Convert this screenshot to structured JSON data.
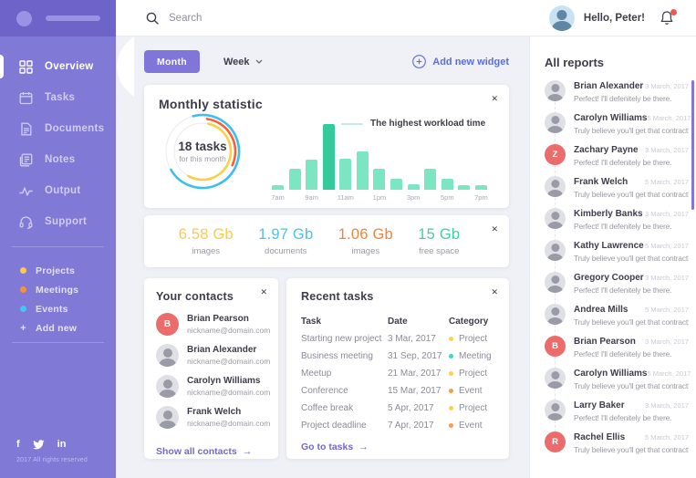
{
  "sidebar": {
    "nav": [
      {
        "label": "Overview",
        "icon": "grid-icon",
        "active": true
      },
      {
        "label": "Tasks",
        "icon": "calendar-icon",
        "active": false
      },
      {
        "label": "Documents",
        "icon": "document-icon",
        "active": false
      },
      {
        "label": "Notes",
        "icon": "notes-icon",
        "active": false
      },
      {
        "label": "Output",
        "icon": "pulse-icon",
        "active": false
      },
      {
        "label": "Support",
        "icon": "headset-icon",
        "active": false
      }
    ],
    "categories": [
      {
        "label": "Projects",
        "color": "#fcc94b"
      },
      {
        "label": "Meetings",
        "color": "#f5923e"
      },
      {
        "label": "Events",
        "color": "#41c7f5"
      }
    ],
    "add_new_label": "Add new",
    "social": [
      {
        "name": "facebook-icon",
        "glyph": "f"
      },
      {
        "name": "twitter-icon",
        "glyph": ""
      },
      {
        "name": "linkedin-icon",
        "glyph": "in"
      }
    ],
    "copyright": "2017 All rights reserved"
  },
  "topbar": {
    "search_placeholder": "Search",
    "greeting": "Hello, Peter!"
  },
  "controls": {
    "month_label": "Month",
    "week_label": "Week",
    "add_widget_label": "Add new widget"
  },
  "monthly_statistic": {
    "title": "Monthly statistic"
  },
  "chart_data": [
    {
      "type": "donut",
      "center_value": "18 tasks",
      "center_caption": "for this month",
      "arcs": [
        {
          "name": "blue",
          "color": "#3ebdf2",
          "radius": 40,
          "start_deg": -15,
          "end_deg": 240
        },
        {
          "name": "orange",
          "color": "#f4623a",
          "radius": 36,
          "start_deg": 8,
          "end_deg": 115
        },
        {
          "name": "yellow",
          "color": "#fccf44",
          "radius": 31,
          "start_deg": 12,
          "end_deg": 210
        }
      ],
      "track_radii": [
        40,
        31
      ],
      "track_color": "#ededf2"
    },
    {
      "type": "bar",
      "legend": "The highest workload time",
      "x_labels": [
        "7am",
        "",
        "9am",
        "",
        "11am",
        "",
        "1pm",
        "",
        "3pm",
        "",
        "5pm",
        "",
        "7pm"
      ],
      "values": [
        7,
        30,
        43,
        95,
        45,
        55,
        30,
        16,
        8,
        30,
        16,
        7,
        6
      ],
      "highlight_index": 3,
      "bar_color": "#7ce5c2",
      "highlight_color": "#35ca9b",
      "ylim": [
        0,
        100
      ]
    }
  ],
  "storage_stats": [
    {
      "value": "6.58 Gb",
      "label": "images",
      "color": "#fcc94b"
    },
    {
      "value": "1.97 Gb",
      "label": "documents",
      "color": "#46c5ef"
    },
    {
      "value": "1.06 Gb",
      "label": "images",
      "color": "#f5823a"
    },
    {
      "value": "15 Gb",
      "label": "free space",
      "color": "#3fd1a6"
    }
  ],
  "contacts": {
    "title": "Your contacts",
    "items": [
      {
        "name": "Brian Pearson",
        "email": "nickname@domain.com",
        "avatar": {
          "style": "letter",
          "initial": "B",
          "color": "#ec6b6b"
        }
      },
      {
        "name": "Brian Alexander",
        "email": "nickname@domain.com",
        "avatar": {
          "style": "photo"
        }
      },
      {
        "name": "Carolyn Williams",
        "email": "nickname@domain.com",
        "avatar": {
          "style": "photo"
        }
      },
      {
        "name": "Frank Welch",
        "email": "nickname@domain.com",
        "avatar": {
          "style": "photo"
        }
      }
    ],
    "link": "Show all contacts",
    "link_arrow": "→"
  },
  "recent_tasks": {
    "title": "Recent tasks",
    "headers": [
      "Task",
      "Date",
      "Category"
    ],
    "rows": [
      {
        "task": "Starting new project",
        "date": "3 Mar, 2017",
        "category": "Project"
      },
      {
        "task": "Business meeting",
        "date": "31 Sep, 2017",
        "category": "Meeting"
      },
      {
        "task": "Meetup",
        "date": "21 Mar, 2017",
        "category": "Project"
      },
      {
        "task": "Conference",
        "date": "15 Mar, 2017",
        "category": "Event"
      },
      {
        "task": "Coffee break",
        "date": "5 Apr, 2017",
        "category": "Project"
      },
      {
        "task": "Project deadline",
        "date": "7 Apr, 2017",
        "category": "Event"
      }
    ],
    "category_colors": {
      "Project": "#fcd14b",
      "Meeting": "#3fd6cc",
      "Event": "#f59d4b"
    },
    "link": "Go to tasks",
    "link_arrow": "→"
  },
  "reports": {
    "title": "All reports",
    "items": [
      {
        "name": "Brian Alexander",
        "date": "3 March, 2017",
        "message": "Perfect! I'll defenitely be there.",
        "avatar": {
          "style": "photo"
        }
      },
      {
        "name": "Carolyn Williams",
        "date": "5 March, 2017",
        "message": "Truly believe you'll get that contract!",
        "avatar": {
          "style": "photo"
        }
      },
      {
        "name": "Zachary Payne",
        "date": "3 March, 2017",
        "message": "Perfect! I'll defenitely be there.",
        "avatar": {
          "style": "letter",
          "initial": "Z",
          "color": "#ec6b6b"
        }
      },
      {
        "name": "Frank Welch",
        "date": "5 March, 2017",
        "message": "Truly believe you'll get that contract!",
        "avatar": {
          "style": "photo"
        }
      },
      {
        "name": "Kimberly Banks",
        "date": "3 March, 2017",
        "message": "Perfect! I'll defenitely be there.",
        "avatar": {
          "style": "photo"
        }
      },
      {
        "name": "Kathy Lawrence",
        "date": "5 March, 2017",
        "message": "Truly believe you'll get that contract!",
        "avatar": {
          "style": "photo"
        }
      },
      {
        "name": "Gregory Cooper",
        "date": "3 March, 2017",
        "message": "Perfect! I'll defenitely be there.",
        "avatar": {
          "style": "photo"
        }
      },
      {
        "name": "Andrea Mills",
        "date": "5 March, 2017",
        "message": "Truly believe you'll get that contract!",
        "avatar": {
          "style": "photo"
        }
      },
      {
        "name": "Brian Pearson",
        "date": "3 March, 2017",
        "message": "Perfect! I'll defenitely be there.",
        "avatar": {
          "style": "letter",
          "initial": "B",
          "color": "#ec6b6b"
        }
      },
      {
        "name": "Carolyn Williams",
        "date": "5 March, 2017",
        "message": "Truly believe you'll get that contract!",
        "avatar": {
          "style": "photo"
        }
      },
      {
        "name": "Larry Baker",
        "date": "3 March, 2017",
        "message": "Perfect! I'll defenitely be there.",
        "avatar": {
          "style": "photo"
        }
      },
      {
        "name": "Rachel Ellis",
        "date": "5 March, 2017",
        "message": "Truly believe you'll get that contract!",
        "avatar": {
          "style": "letter",
          "initial": "R",
          "color": "#ec6b6b"
        }
      }
    ]
  }
}
